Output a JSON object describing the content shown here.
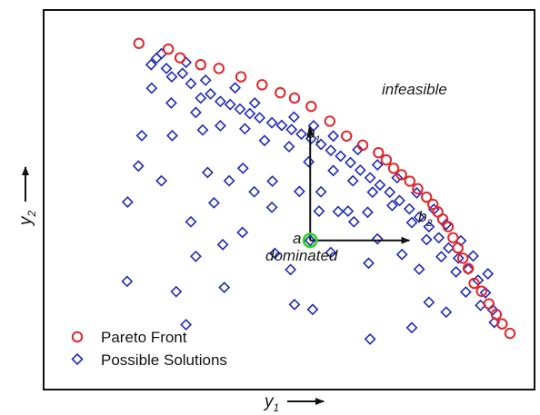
{
  "chart_data": {
    "type": "scatter",
    "xlabel": "y",
    "xlabel_sub": "1",
    "ylabel": "y",
    "ylabel_sub": "2",
    "xlim": [
      0,
      10
    ],
    "ylim": [
      0,
      10
    ],
    "grid": false,
    "legend_position": "bottom-left",
    "colors": {
      "pareto": "#e0262a",
      "possible": "#1f2ab8",
      "highlight": "#35d62b",
      "axes": "#111111"
    },
    "series": [
      {
        "name": "Pareto Front",
        "marker": "circle",
        "points": [
          [
            1.94,
            9.12
          ],
          [
            2.54,
            8.97
          ],
          [
            2.78,
            8.74
          ],
          [
            3.2,
            8.56
          ],
          [
            3.57,
            8.46
          ],
          [
            4.02,
            8.24
          ],
          [
            4.45,
            8.03
          ],
          [
            4.82,
            7.82
          ],
          [
            5.11,
            7.68
          ],
          [
            5.45,
            7.46
          ],
          [
            5.83,
            7.07
          ],
          [
            6.17,
            6.68
          ],
          [
            6.5,
            6.44
          ],
          [
            6.82,
            6.24
          ],
          [
            6.98,
            6.05
          ],
          [
            7.13,
            5.83
          ],
          [
            7.29,
            5.66
          ],
          [
            7.46,
            5.49
          ],
          [
            7.62,
            5.29
          ],
          [
            7.8,
            5.07
          ],
          [
            7.93,
            4.88
          ],
          [
            8.03,
            4.68
          ],
          [
            8.13,
            4.49
          ],
          [
            8.24,
            4.29
          ],
          [
            8.34,
            4.0
          ],
          [
            8.44,
            3.73
          ],
          [
            8.54,
            3.46
          ],
          [
            8.65,
            3.19
          ],
          [
            8.77,
            2.8
          ],
          [
            8.92,
            2.59
          ],
          [
            9.07,
            2.26
          ],
          [
            9.22,
            1.98
          ],
          [
            9.34,
            1.73
          ],
          [
            9.5,
            1.48
          ]
        ]
      },
      {
        "name": "Possible Solutions",
        "marker": "diamond",
        "points": [
          [
            2.19,
            8.56
          ],
          [
            2.3,
            8.73
          ],
          [
            2.5,
            8.46
          ],
          [
            2.61,
            8.24
          ],
          [
            2.83,
            8.33
          ],
          [
            3.0,
            8.06
          ],
          [
            3.2,
            7.68
          ],
          [
            3.4,
            7.79
          ],
          [
            3.6,
            7.59
          ],
          [
            3.8,
            7.51
          ],
          [
            4.0,
            7.39
          ],
          [
            4.2,
            7.27
          ],
          [
            4.4,
            7.16
          ],
          [
            4.65,
            7.03
          ],
          [
            4.85,
            6.96
          ],
          [
            5.05,
            6.85
          ],
          [
            5.25,
            6.73
          ],
          [
            5.45,
            6.61
          ],
          [
            5.65,
            6.46
          ],
          [
            5.85,
            6.3
          ],
          [
            6.05,
            6.15
          ],
          [
            6.25,
            5.98
          ],
          [
            6.45,
            5.78
          ],
          [
            6.65,
            5.58
          ],
          [
            6.85,
            5.39
          ],
          [
            7.05,
            5.2
          ],
          [
            7.25,
            4.98
          ],
          [
            7.45,
            4.76
          ],
          [
            7.65,
            4.54
          ],
          [
            7.85,
            4.29
          ],
          [
            8.05,
            4.0
          ],
          [
            8.25,
            3.73
          ],
          [
            8.45,
            3.46
          ],
          [
            8.65,
            3.17
          ],
          [
            8.85,
            2.88
          ],
          [
            9.0,
            2.55
          ],
          [
            9.15,
            2.1
          ],
          [
            2.4,
            8.85
          ],
          [
            2.9,
            8.62
          ],
          [
            3.3,
            8.15
          ],
          [
            3.9,
            7.95
          ],
          [
            4.3,
            7.55
          ],
          [
            5.1,
            7.18
          ],
          [
            5.5,
            6.95
          ],
          [
            5.9,
            6.68
          ],
          [
            6.4,
            6.32
          ],
          [
            6.8,
            5.92
          ],
          [
            7.2,
            5.58
          ],
          [
            7.6,
            5.18
          ],
          [
            7.95,
            4.75
          ],
          [
            8.2,
            4.35
          ],
          [
            8.5,
            3.92
          ],
          [
            8.75,
            3.52
          ],
          [
            9.05,
            3.05
          ],
          [
            2.2,
            7.94
          ],
          [
            2.6,
            7.55
          ],
          [
            3.1,
            7.3
          ],
          [
            3.6,
            6.95
          ],
          [
            4.1,
            6.87
          ],
          [
            4.5,
            6.56
          ],
          [
            5.0,
            6.4
          ],
          [
            5.4,
            6.0
          ],
          [
            5.9,
            5.77
          ],
          [
            6.3,
            5.5
          ],
          [
            6.7,
            5.2
          ],
          [
            7.1,
            4.85
          ],
          [
            7.5,
            4.4
          ],
          [
            7.8,
            3.95
          ],
          [
            8.1,
            3.5
          ],
          [
            8.4,
            3.1
          ],
          [
            8.6,
            2.57
          ],
          [
            8.9,
            2.22
          ],
          [
            2.0,
            6.69
          ],
          [
            1.93,
            5.89
          ],
          [
            2.62,
            6.69
          ],
          [
            3.24,
            6.84
          ],
          [
            1.71,
            4.94
          ],
          [
            2.4,
            5.5
          ],
          [
            3.34,
            5.72
          ],
          [
            3.78,
            5.5
          ],
          [
            4.06,
            5.83
          ],
          [
            4.29,
            5.21
          ],
          [
            4.66,
            5.49
          ],
          [
            5.21,
            5.22
          ],
          [
            5.61,
            4.7
          ],
          [
            6.0,
            4.69
          ],
          [
            6.6,
            4.67
          ],
          [
            6.8,
            3.97
          ],
          [
            6.32,
            4.42
          ],
          [
            4.05,
            4.14
          ],
          [
            4.71,
            3.59
          ],
          [
            5.85,
            3.61
          ],
          [
            6.62,
            3.33
          ],
          [
            7.3,
            3.56
          ],
          [
            7.65,
            3.17
          ],
          [
            7.85,
            2.3
          ],
          [
            8.2,
            2.04
          ],
          [
            9.18,
            1.77
          ],
          [
            3.1,
            3.51
          ],
          [
            2.7,
            2.58
          ],
          [
            1.7,
            2.85
          ],
          [
            3.65,
            3.82
          ],
          [
            3.68,
            2.69
          ],
          [
            5.03,
            3.16
          ],
          [
            5.11,
            2.24
          ],
          [
            5.48,
            2.11
          ],
          [
            4.65,
            4.8
          ],
          [
            5.65,
            5.21
          ],
          [
            6.2,
            4.7
          ],
          [
            3.0,
            4.42
          ],
          [
            3.47,
            4.92
          ],
          [
            2.9,
            1.71
          ],
          [
            6.65,
            1.33
          ],
          [
            7.5,
            1.63
          ]
        ]
      }
    ],
    "annotations": {
      "infeasible": "infeasible",
      "dominated": "dominated",
      "point_a": "a",
      "b1": "b",
      "b1_sub": "1",
      "b2": "b",
      "b2_sub": "2",
      "point_a_xy": [
        5.43,
        3.93
      ],
      "b1_tip_xy": [
        5.43,
        6.9
      ],
      "b2_tip_xy": [
        7.45,
        3.93
      ]
    }
  }
}
